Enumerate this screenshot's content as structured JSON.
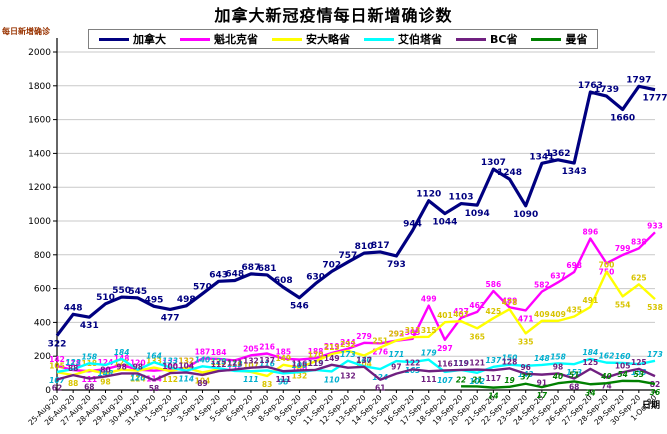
{
  "title": "加拿大新冠疫情每日新增确诊数",
  "y_axis_title": "每日新增确诊",
  "x_axis_title": "日期",
  "colors": {
    "grid": "#c9c9c9",
    "axis": "#000000",
    "legend_border": "#808080"
  },
  "chart_data": {
    "type": "line",
    "title": "加拿大新冠疫情每日新增确诊数",
    "xlabel": "日期",
    "ylabel": "每日新增确诊",
    "ylim": [
      0,
      2000
    ],
    "ytick_step": 200,
    "grid": true,
    "legend_position": "top",
    "categories": [
      "25-Aug-20",
      "26-Aug-20",
      "27-Aug-20",
      "28-Aug-20",
      "29-Aug-20",
      "30-Aug-20",
      "31-Aug-20",
      "1-Sep-20",
      "2-Sep-20",
      "3-Sep-20",
      "4-Sep-20",
      "5-Sep-20",
      "6-Sep-20",
      "7-Sep-20",
      "8-Sep-20",
      "9-Sep-20",
      "10-Sep-20",
      "11-Sep-20",
      "12-Sep-20",
      "13-Sep-20",
      "14-Sep-20",
      "15-Sep-20",
      "16-Sep-20",
      "17-Sep-20",
      "18-Sep-20",
      "19-Sep-20",
      "20-Sep-20",
      "21-Sep-20",
      "22-Sep-20",
      "23-Sep-20",
      "24-Sep-20",
      "25-Sep-20",
      "26-Sep-20",
      "27-Sep-20",
      "28-Sep-20",
      "29-Sep-20",
      "30-Sep-20",
      "1-Oct-20"
    ],
    "series": [
      {
        "name": "加拿大",
        "color": "#000080",
        "label_color": "#000080",
        "label_italic": false,
        "line_width": 3.2,
        "label_size": 9,
        "values": [
          322,
          448,
          431,
          510,
          550,
          545,
          495,
          477,
          498,
          570,
          643,
          648,
          687,
          681,
          608,
          546,
          630,
          702,
          757,
          810,
          817,
          793,
          944,
          1120,
          1044,
          1103,
          1094,
          1307,
          1248,
          1090,
          1341,
          1362,
          1343,
          1763,
          1739,
          1660,
          1797,
          1777
        ]
      },
      {
        "name": "魁北克省",
        "color": "#FF00FF",
        "label_color": "#FF00FF",
        "label_italic": false,
        "line_width": 2.4,
        "label_size": 7.5,
        "values": [
          142,
          118,
          111,
          124,
          148,
          120,
          114,
          122,
          132,
          187,
          184,
          175,
          205,
          216,
          185,
          180,
          188,
          219,
          244,
          279,
          276,
          292,
          303,
          499,
          297,
          427,
          462,
          586,
          489,
          471,
          582,
          637,
          698,
          896,
          750,
          799,
          838,
          933
        ]
      },
      {
        "name": "安大略省",
        "color": "#FFFF00",
        "label_color": "#D8C400",
        "label_italic": false,
        "line_width": 2.4,
        "label_size": 7.5,
        "values": [
          105,
          88,
          118,
          98,
          121,
          114,
          133,
          112,
          132,
          104,
          123,
          116,
          107,
          83,
          149,
          132,
          170,
          213,
          232,
          204,
          251,
          293,
          313,
          315,
          401,
          407,
          365,
          425,
          478,
          335,
          409,
          409,
          435,
          491,
          700,
          554,
          625,
          538
        ]
      },
      {
        "name": "艾伯塔省",
        "color": "#00FFFF",
        "label_color": "#00B0D0",
        "label_italic": true,
        "line_width": 2.4,
        "label_size": 7.5,
        "values": [
          107,
          123,
          158,
          148,
          184,
          120,
          164,
          133,
          114,
          140,
          129,
          113,
          111,
          116,
          98,
          106,
          119,
          110,
          173,
          140,
          124,
          171,
          165,
          179,
          107,
          119,
          102,
          137,
          150,
          143,
          148,
          158,
          153,
          184,
          162,
          160,
          153,
          173
        ]
      },
      {
        "name": "BC省",
        "color": "#702080",
        "label_color": "#702080",
        "label_italic": false,
        "line_width": 2.4,
        "label_size": 7.5,
        "values": [
          62,
          88,
          68,
          80,
          98,
          98,
          58,
          100,
          104,
          89,
          112,
          121,
          132,
          137,
          111,
          116,
          119,
          149,
          132,
          137,
          61,
          97,
          122,
          111,
          116,
          119,
          121,
          117,
          128,
          96,
          91,
          98,
          68,
          125,
          74,
          105,
          125,
          82
        ]
      },
      {
        "name": "曼省",
        "color": "#008000",
        "label_color": "#008000",
        "label_italic": true,
        "line_width": 2.4,
        "label_size": 7.5,
        "values": [
          null,
          null,
          null,
          null,
          null,
          null,
          null,
          null,
          null,
          null,
          null,
          null,
          null,
          null,
          null,
          null,
          null,
          null,
          null,
          null,
          null,
          null,
          null,
          null,
          null,
          22,
          21,
          14,
          19,
          37,
          17,
          40,
          51,
          34,
          40,
          54,
          53,
          36
        ]
      }
    ]
  }
}
